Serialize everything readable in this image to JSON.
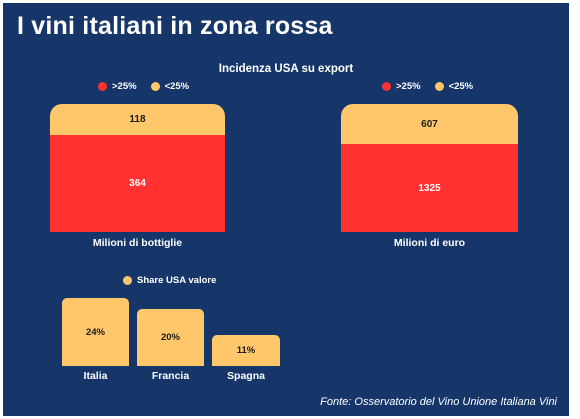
{
  "title": "I vini italiani in zona rossa",
  "source": "Fonte: Osservatorio del Vino Unione Italiana Vini",
  "colors": {
    "background": "#16366a",
    "high": "#ff3131",
    "low": "#ffc76a",
    "text": "#ffffff"
  },
  "chart_data": [
    {
      "type": "bar",
      "stacked": true,
      "title": "Incidenza USA su export",
      "legend": [
        "<25%",
        ">25%"
      ],
      "legend_position": "top",
      "categories": [
        "Milioni di bottiglie"
      ],
      "series": [
        {
          "name": ">25%",
          "values": [
            364
          ]
        },
        {
          "name": "<25%",
          "values": [
            118
          ]
        }
      ]
    },
    {
      "type": "bar",
      "stacked": true,
      "title": "",
      "legend": [
        "<25%",
        ">25%"
      ],
      "legend_position": "top",
      "categories": [
        "Milioni di euro"
      ],
      "series": [
        {
          "name": ">25%",
          "values": [
            1325
          ]
        },
        {
          "name": "<25%",
          "values": [
            607
          ]
        }
      ]
    },
    {
      "type": "bar",
      "title": "",
      "legend": [
        "Share USA valore"
      ],
      "legend_position": "top",
      "categories": [
        "Italia",
        "Francia",
        "Spagna"
      ],
      "values": [
        24,
        20,
        11
      ],
      "value_labels": [
        "24%",
        "20%",
        "11%"
      ],
      "unit": "%"
    }
  ]
}
